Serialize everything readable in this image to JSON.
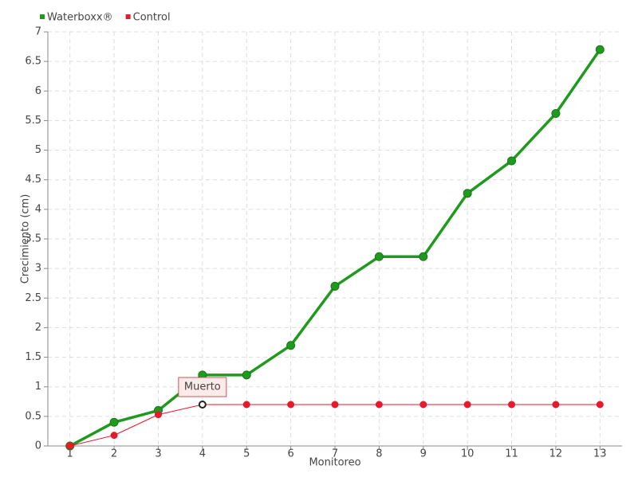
{
  "chart_data": {
    "type": "line",
    "x_label": "Monitoreo",
    "y_label": "Crecimiento (cm)",
    "categories": [
      "1",
      "2",
      "3",
      "4",
      "5",
      "6",
      "7",
      "8",
      "9",
      "10",
      "11",
      "12",
      "13"
    ],
    "series": [
      {
        "name": "Waterboxx®",
        "color": "#1f9a1f",
        "values": [
          0,
          0.4,
          0.6,
          1.2,
          1.2,
          1.7,
          2.7,
          3.2,
          3.2,
          4.27,
          4.82,
          5.62,
          6.7
        ]
      },
      {
        "name": "Control",
        "color": "#e8192c",
        "values": [
          0,
          0.18,
          0.53,
          0.7,
          0.7,
          0.7,
          0.7,
          0.7,
          0.7,
          0.7,
          0.7,
          0.7,
          0.7
        ]
      }
    ],
    "annotations": [
      {
        "text": "Muerto",
        "series": "Control",
        "category": "4"
      }
    ],
    "ylim": [
      0,
      7
    ],
    "yticks": [
      0,
      0.5,
      1,
      1.5,
      2,
      2.5,
      3,
      3.5,
      4,
      4.5,
      5,
      5.5,
      6,
      6.5,
      7
    ],
    "grid": true,
    "legend": "top-left"
  }
}
